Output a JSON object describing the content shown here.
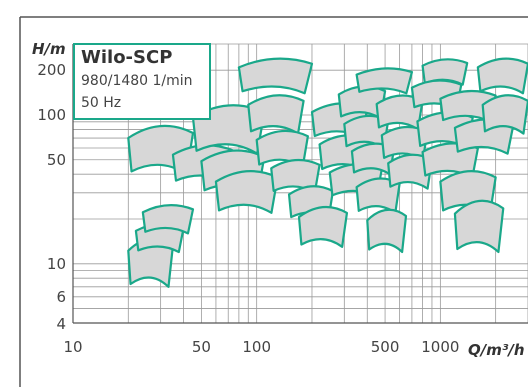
{
  "chart_data": {
    "type": "area",
    "title": "Wilo-SCP",
    "subtitle_lines": [
      "980/1480 1/min",
      "50 Hz"
    ],
    "xlabel": "Q/m³/h",
    "ylabel": "H/m",
    "x_scale": "log",
    "y_scale": "log",
    "xlim": [
      10,
      3000
    ],
    "ylim": [
      4,
      300
    ],
    "x_tick_labels": [
      {
        "label": "10",
        "value": 10
      },
      {
        "label": "50",
        "value": 50
      },
      {
        "label": "100",
        "value": 100
      },
      {
        "label": "500",
        "value": 500
      },
      {
        "label": "1000",
        "value": 1000
      }
    ],
    "y_tick_labels": [
      {
        "label": "200",
        "value": 200
      },
      {
        "label": "100",
        "value": 100
      },
      {
        "label": "50",
        "value": 50
      },
      {
        "label": "10",
        "value": 10
      },
      {
        "label": "6",
        "value": 6
      },
      {
        "label": "4",
        "value": 4
      }
    ],
    "grid": true,
    "colors": {
      "outline": "#1aa88a",
      "fill": "#d7d7d7",
      "grid": "#9a9a9a",
      "frame": "#555555"
    },
    "series": [
      {
        "q_range": [
          20,
          35
        ],
        "h_range": [
          7,
          14
        ]
      },
      {
        "q_range": [
          22,
          40
        ],
        "h_range": [
          12,
          18
        ]
      },
      {
        "q_range": [
          24,
          45
        ],
        "h_range": [
          16,
          24
        ]
      },
      {
        "q_range": [
          20,
          45
        ],
        "h_range": [
          40,
          80
        ]
      },
      {
        "q_range": [
          35,
          75
        ],
        "h_range": [
          35,
          60
        ]
      },
      {
        "q_range": [
          45,
          110
        ],
        "h_range": [
          55,
          110
        ]
      },
      {
        "q_range": [
          50,
          110
        ],
        "h_range": [
          30,
          55
        ]
      },
      {
        "q_range": [
          60,
          130
        ],
        "h_range": [
          22,
          40
        ]
      },
      {
        "q_range": [
          80,
          200
        ],
        "h_range": [
          140,
          230
        ]
      },
      {
        "q_range": [
          90,
          180
        ],
        "h_range": [
          75,
          130
        ]
      },
      {
        "q_range": [
          100,
          190
        ],
        "h_range": [
          45,
          75
        ]
      },
      {
        "q_range": [
          120,
          220
        ],
        "h_range": [
          30,
          48
        ]
      },
      {
        "q_range": [
          150,
          260
        ],
        "h_range": [
          20,
          32
        ]
      },
      {
        "q_range": [
          170,
          310
        ],
        "h_range": [
          13,
          23
        ]
      },
      {
        "q_range": [
          200,
          400
        ],
        "h_range": [
          70,
          115
        ]
      },
      {
        "q_range": [
          220,
          420
        ],
        "h_range": [
          42,
          70
        ]
      },
      {
        "q_range": [
          250,
          480
        ],
        "h_range": [
          28,
          45
        ]
      },
      {
        "q_range": [
          280,
          500
        ],
        "h_range": [
          95,
          150
        ]
      },
      {
        "q_range": [
          300,
          520
        ],
        "h_range": [
          60,
          95
        ]
      },
      {
        "q_range": [
          330,
          560
        ],
        "h_range": [
          40,
          62
        ]
      },
      {
        "q_range": [
          350,
          600
        ],
        "h_range": [
          22,
          36
        ]
      },
      {
        "q_range": [
          400,
          650
        ],
        "h_range": [
          12,
          22
        ]
      },
      {
        "q_range": [
          350,
          700
        ],
        "h_range": [
          140,
          200
        ]
      },
      {
        "q_range": [
          450,
          800
        ],
        "h_range": [
          80,
          130
        ]
      },
      {
        "q_range": [
          480,
          850
        ],
        "h_range": [
          50,
          80
        ]
      },
      {
        "q_range": [
          520,
          900
        ],
        "h_range": [
          32,
          52
        ]
      },
      {
        "q_range": [
          800,
          1400
        ],
        "h_range": [
          160,
          230
        ]
      },
      {
        "q_range": [
          700,
          1300
        ],
        "h_range": [
          110,
          165
        ]
      },
      {
        "q_range": [
          750,
          1500
        ],
        "h_range": [
          60,
          100
        ]
      },
      {
        "q_range": [
          800,
          1600
        ],
        "h_range": [
          38,
          62
        ]
      },
      {
        "q_range": [
          1000,
          2000
        ],
        "h_range": [
          22,
          40
        ]
      },
      {
        "q_range": [
          1200,
          2200
        ],
        "h_range": [
          12,
          25
        ]
      },
      {
        "q_range": [
          1000,
          2000
        ],
        "h_range": [
          90,
          140
        ]
      },
      {
        "q_range": [
          1200,
          2500
        ],
        "h_range": [
          55,
          90
        ]
      },
      {
        "q_range": [
          1600,
          3000
        ],
        "h_range": [
          140,
          230
        ]
      },
      {
        "q_range": [
          1700,
          3000
        ],
        "h_range": [
          75,
          130
        ]
      }
    ]
  }
}
